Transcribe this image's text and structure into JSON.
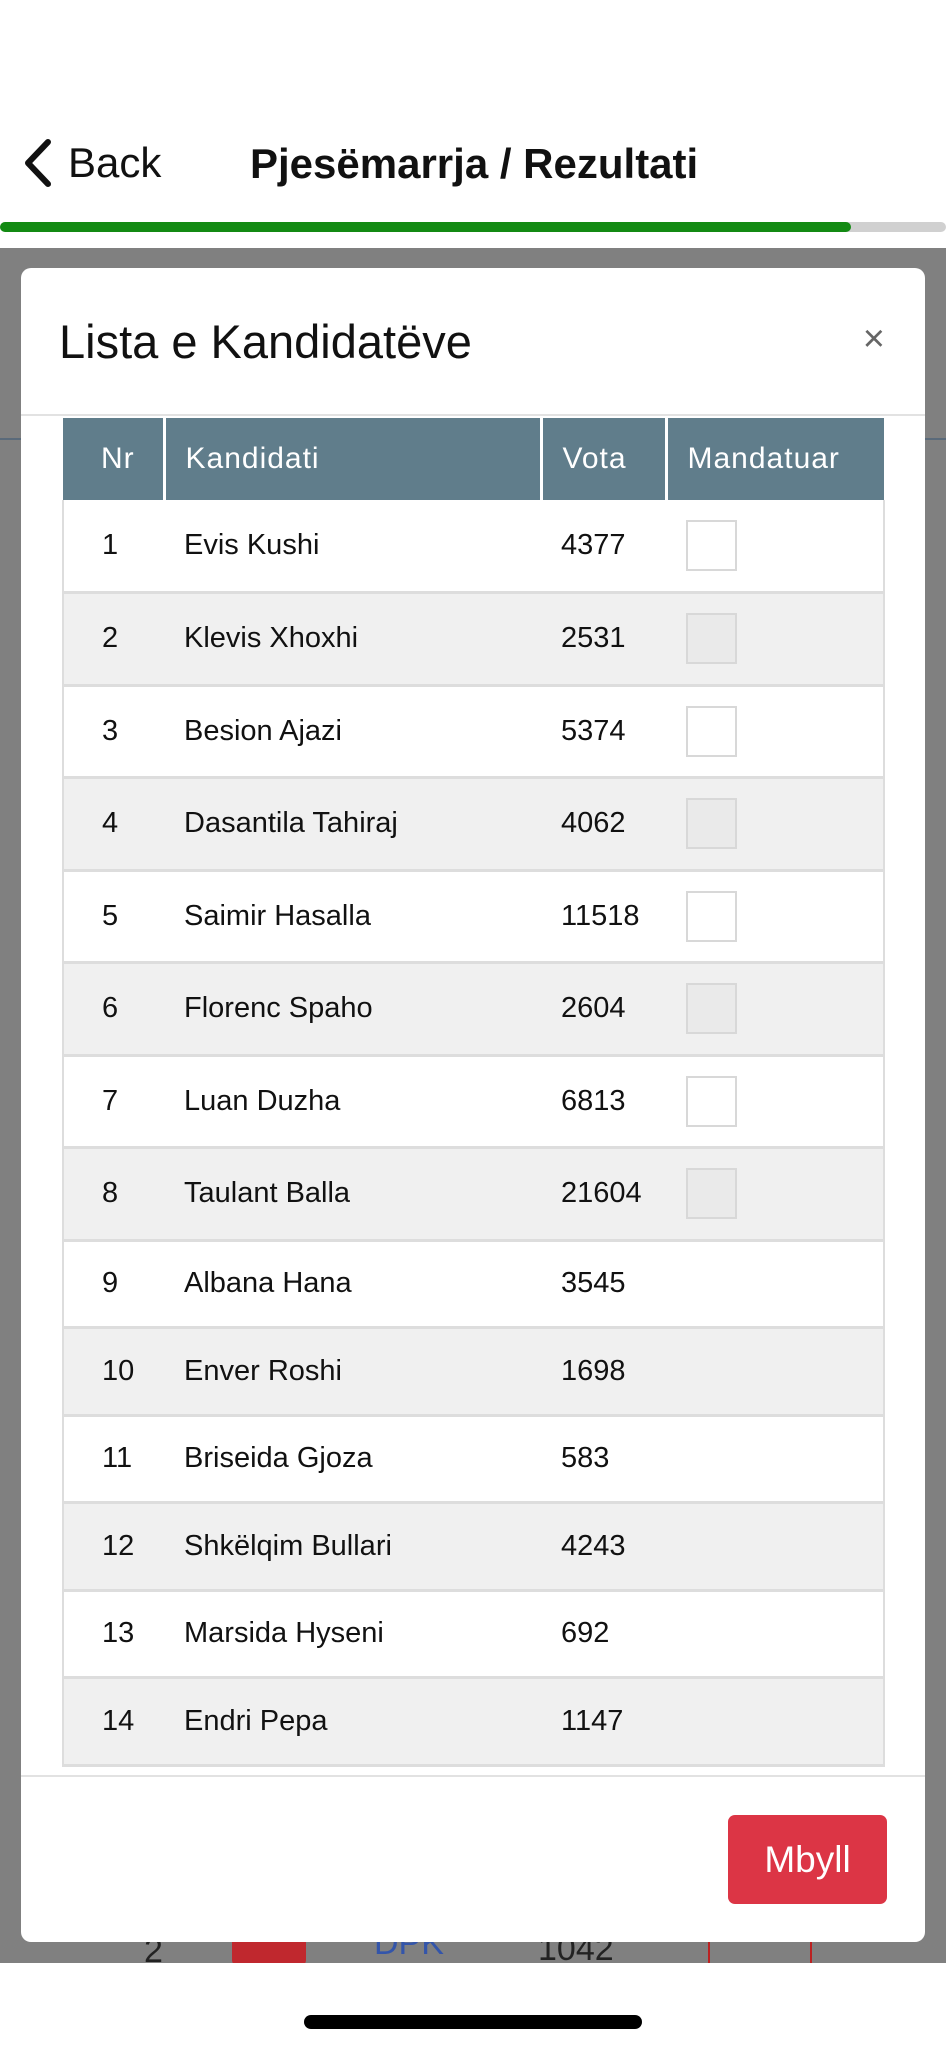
{
  "nav": {
    "back_label": "Back",
    "title": "Pjesëmarrja / Rezultati",
    "progress_percent": 90,
    "progress_color": "#138a13"
  },
  "modal": {
    "title": "Lista e Kandidatëve",
    "close_icon": "×",
    "columns": [
      "Nr",
      "Kandidati",
      "Vota",
      "Mandatuar"
    ],
    "rows": [
      {
        "nr": "1",
        "name": "Evis Kushi",
        "votes": "4377",
        "checkbox": true
      },
      {
        "nr": "2",
        "name": "Klevis Xhoxhi",
        "votes": "2531",
        "checkbox": true
      },
      {
        "nr": "3",
        "name": "Besion Ajazi",
        "votes": "5374",
        "checkbox": true
      },
      {
        "nr": "4",
        "name": "Dasantila Tahiraj",
        "votes": "4062",
        "checkbox": true
      },
      {
        "nr": "5",
        "name": "Saimir Hasalla",
        "votes": "11518",
        "checkbox": true
      },
      {
        "nr": "6",
        "name": "Florenc Spaho",
        "votes": "2604",
        "checkbox": true
      },
      {
        "nr": "7",
        "name": "Luan Duzha",
        "votes": "6813",
        "checkbox": true
      },
      {
        "nr": "8",
        "name": "Taulant Balla",
        "votes": "21604",
        "checkbox": true
      },
      {
        "nr": "9",
        "name": "Albana Hana",
        "votes": "3545",
        "checkbox": false
      },
      {
        "nr": "10",
        "name": "Enver Roshi",
        "votes": "1698",
        "checkbox": false
      },
      {
        "nr": "11",
        "name": "Briseida Gjoza",
        "votes": "583",
        "checkbox": false
      },
      {
        "nr": "12",
        "name": "Shkëlqim Bullari",
        "votes": "4243",
        "checkbox": false
      },
      {
        "nr": "13",
        "name": "Marsida Hyseni",
        "votes": "692",
        "checkbox": false
      },
      {
        "nr": "14",
        "name": "Endri Pepa",
        "votes": "1147",
        "checkbox": false
      }
    ],
    "close_button_label": "Mbyll",
    "close_button_color": "#dc3545"
  },
  "background_row": {
    "nr": "2",
    "party": "DPK",
    "votes": "1042"
  }
}
